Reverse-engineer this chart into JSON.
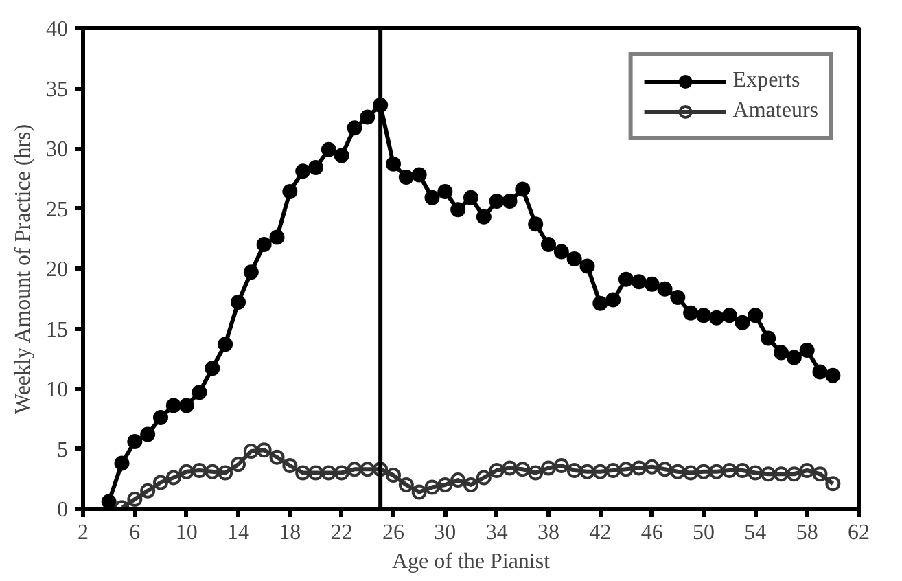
{
  "chart_data": {
    "type": "line",
    "xlabel": "Age of the Pianist",
    "ylabel": "Weekly Amount of Practice (hrs)",
    "xlim": [
      2,
      62
    ],
    "xticks": [
      2,
      6,
      10,
      14,
      18,
      22,
      26,
      30,
      34,
      38,
      42,
      46,
      50,
      54,
      58,
      62
    ],
    "ylim": [
      0,
      40
    ],
    "yticks": [
      0,
      5,
      10,
      15,
      20,
      25,
      30,
      35,
      40
    ],
    "grid": false,
    "legend": "top right",
    "marker": "circle",
    "line_style": "solid",
    "ref_lines": [
      {
        "axis": "x",
        "value": 25,
        "color": "#000000"
      }
    ],
    "series": [
      {
        "name": "Experts",
        "color": "#000000",
        "x": [
          4,
          5,
          6,
          7,
          8,
          9,
          10,
          11,
          12,
          13,
          14,
          15,
          16,
          17,
          18,
          19,
          20,
          21,
          22,
          23,
          24,
          25,
          26,
          27,
          28,
          29,
          30,
          31,
          32,
          33,
          34,
          35,
          36,
          37,
          38,
          39,
          40,
          41,
          42,
          43,
          44,
          45,
          46,
          47,
          48,
          49,
          50,
          51,
          52,
          53,
          54,
          55,
          56,
          57,
          58,
          59,
          60
        ],
        "values": [
          0.6,
          3.8,
          5.6,
          6.2,
          7.6,
          8.6,
          8.6,
          9.7,
          11.7,
          13.7,
          17.2,
          19.7,
          22.0,
          22.6,
          26.4,
          28.1,
          28.4,
          29.9,
          29.4,
          31.7,
          32.6,
          33.6,
          28.7,
          27.6,
          27.8,
          25.9,
          26.4,
          24.9,
          25.9,
          24.3,
          25.6,
          25.6,
          26.6,
          23.7,
          22.0,
          21.4,
          20.8,
          20.2,
          17.1,
          17.4,
          19.1,
          18.9,
          18.7,
          18.3,
          17.6,
          16.3,
          16.1,
          15.9,
          16.1,
          15.5,
          16.1,
          14.2,
          13.0,
          12.6,
          13.2,
          11.4,
          11.1
        ]
      },
      {
        "name": "Amateurs",
        "color": "#333333",
        "x": [
          5,
          6,
          7,
          8,
          9,
          10,
          11,
          12,
          13,
          14,
          15,
          16,
          17,
          18,
          19,
          20,
          21,
          22,
          23,
          24,
          25,
          26,
          27,
          28,
          29,
          30,
          31,
          32,
          33,
          34,
          35,
          36,
          37,
          38,
          39,
          40,
          41,
          42,
          43,
          44,
          45,
          46,
          47,
          48,
          49,
          50,
          51,
          52,
          53,
          54,
          55,
          56,
          57,
          58,
          59,
          60
        ],
        "values": [
          0.1,
          0.8,
          1.5,
          2.2,
          2.6,
          3.1,
          3.2,
          3.1,
          3.0,
          3.7,
          4.8,
          4.9,
          4.3,
          3.6,
          3.0,
          3.0,
          3.0,
          3.0,
          3.3,
          3.3,
          3.3,
          2.8,
          2.0,
          1.4,
          1.8,
          2.0,
          2.4,
          2.0,
          2.6,
          3.2,
          3.4,
          3.3,
          3.0,
          3.4,
          3.6,
          3.2,
          3.1,
          3.1,
          3.2,
          3.3,
          3.4,
          3.5,
          3.3,
          3.1,
          3.0,
          3.1,
          3.1,
          3.2,
          3.2,
          3.0,
          2.9,
          2.9,
          2.9,
          3.2,
          2.9,
          2.1
        ]
      }
    ]
  }
}
